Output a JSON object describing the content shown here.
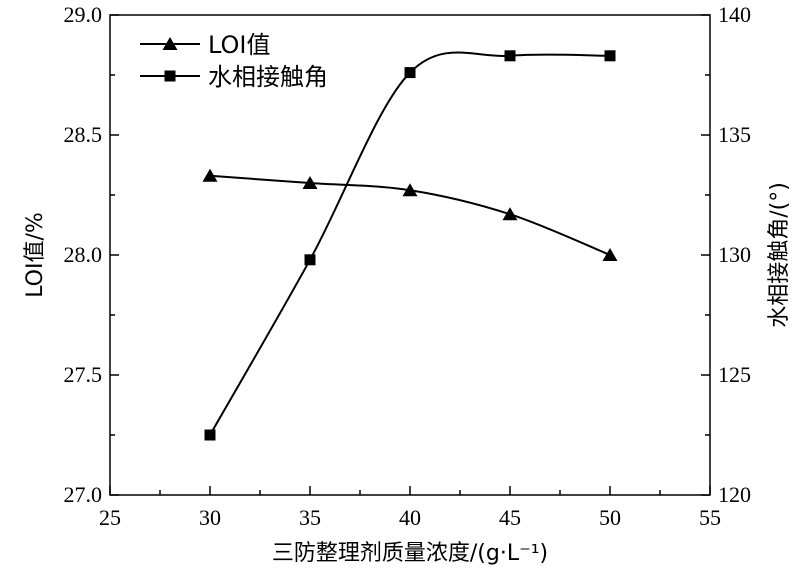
{
  "chart_data": {
    "type": "line",
    "x": [
      30,
      35,
      40,
      45,
      50
    ],
    "xlabel": "三防整理剂质量浓度/(g·L⁻¹)",
    "xlim": [
      25,
      55
    ],
    "xticks": [
      "25",
      "30",
      "35",
      "40",
      "45",
      "50",
      "55"
    ],
    "ylabel_left": "LOI值/%",
    "ylim_left": [
      27.0,
      29.0
    ],
    "yticks_left": [
      "27.0",
      "27.5",
      "28.0",
      "28.5",
      "29.0"
    ],
    "ylabel_right": "水相接触角/(°)",
    "ylim_right": [
      120,
      140
    ],
    "yticks_right": [
      "120",
      "125",
      "130",
      "135",
      "140"
    ],
    "series": [
      {
        "name": "LOI值",
        "axis": "left",
        "marker": "triangle",
        "values": [
          28.33,
          28.3,
          28.27,
          28.17,
          28.0
        ]
      },
      {
        "name": "水相接触角",
        "axis": "right",
        "marker": "square",
        "values": [
          122.5,
          129.8,
          137.6,
          138.3,
          138.3
        ]
      }
    ],
    "legend_position": "top-left",
    "grid": false
  }
}
